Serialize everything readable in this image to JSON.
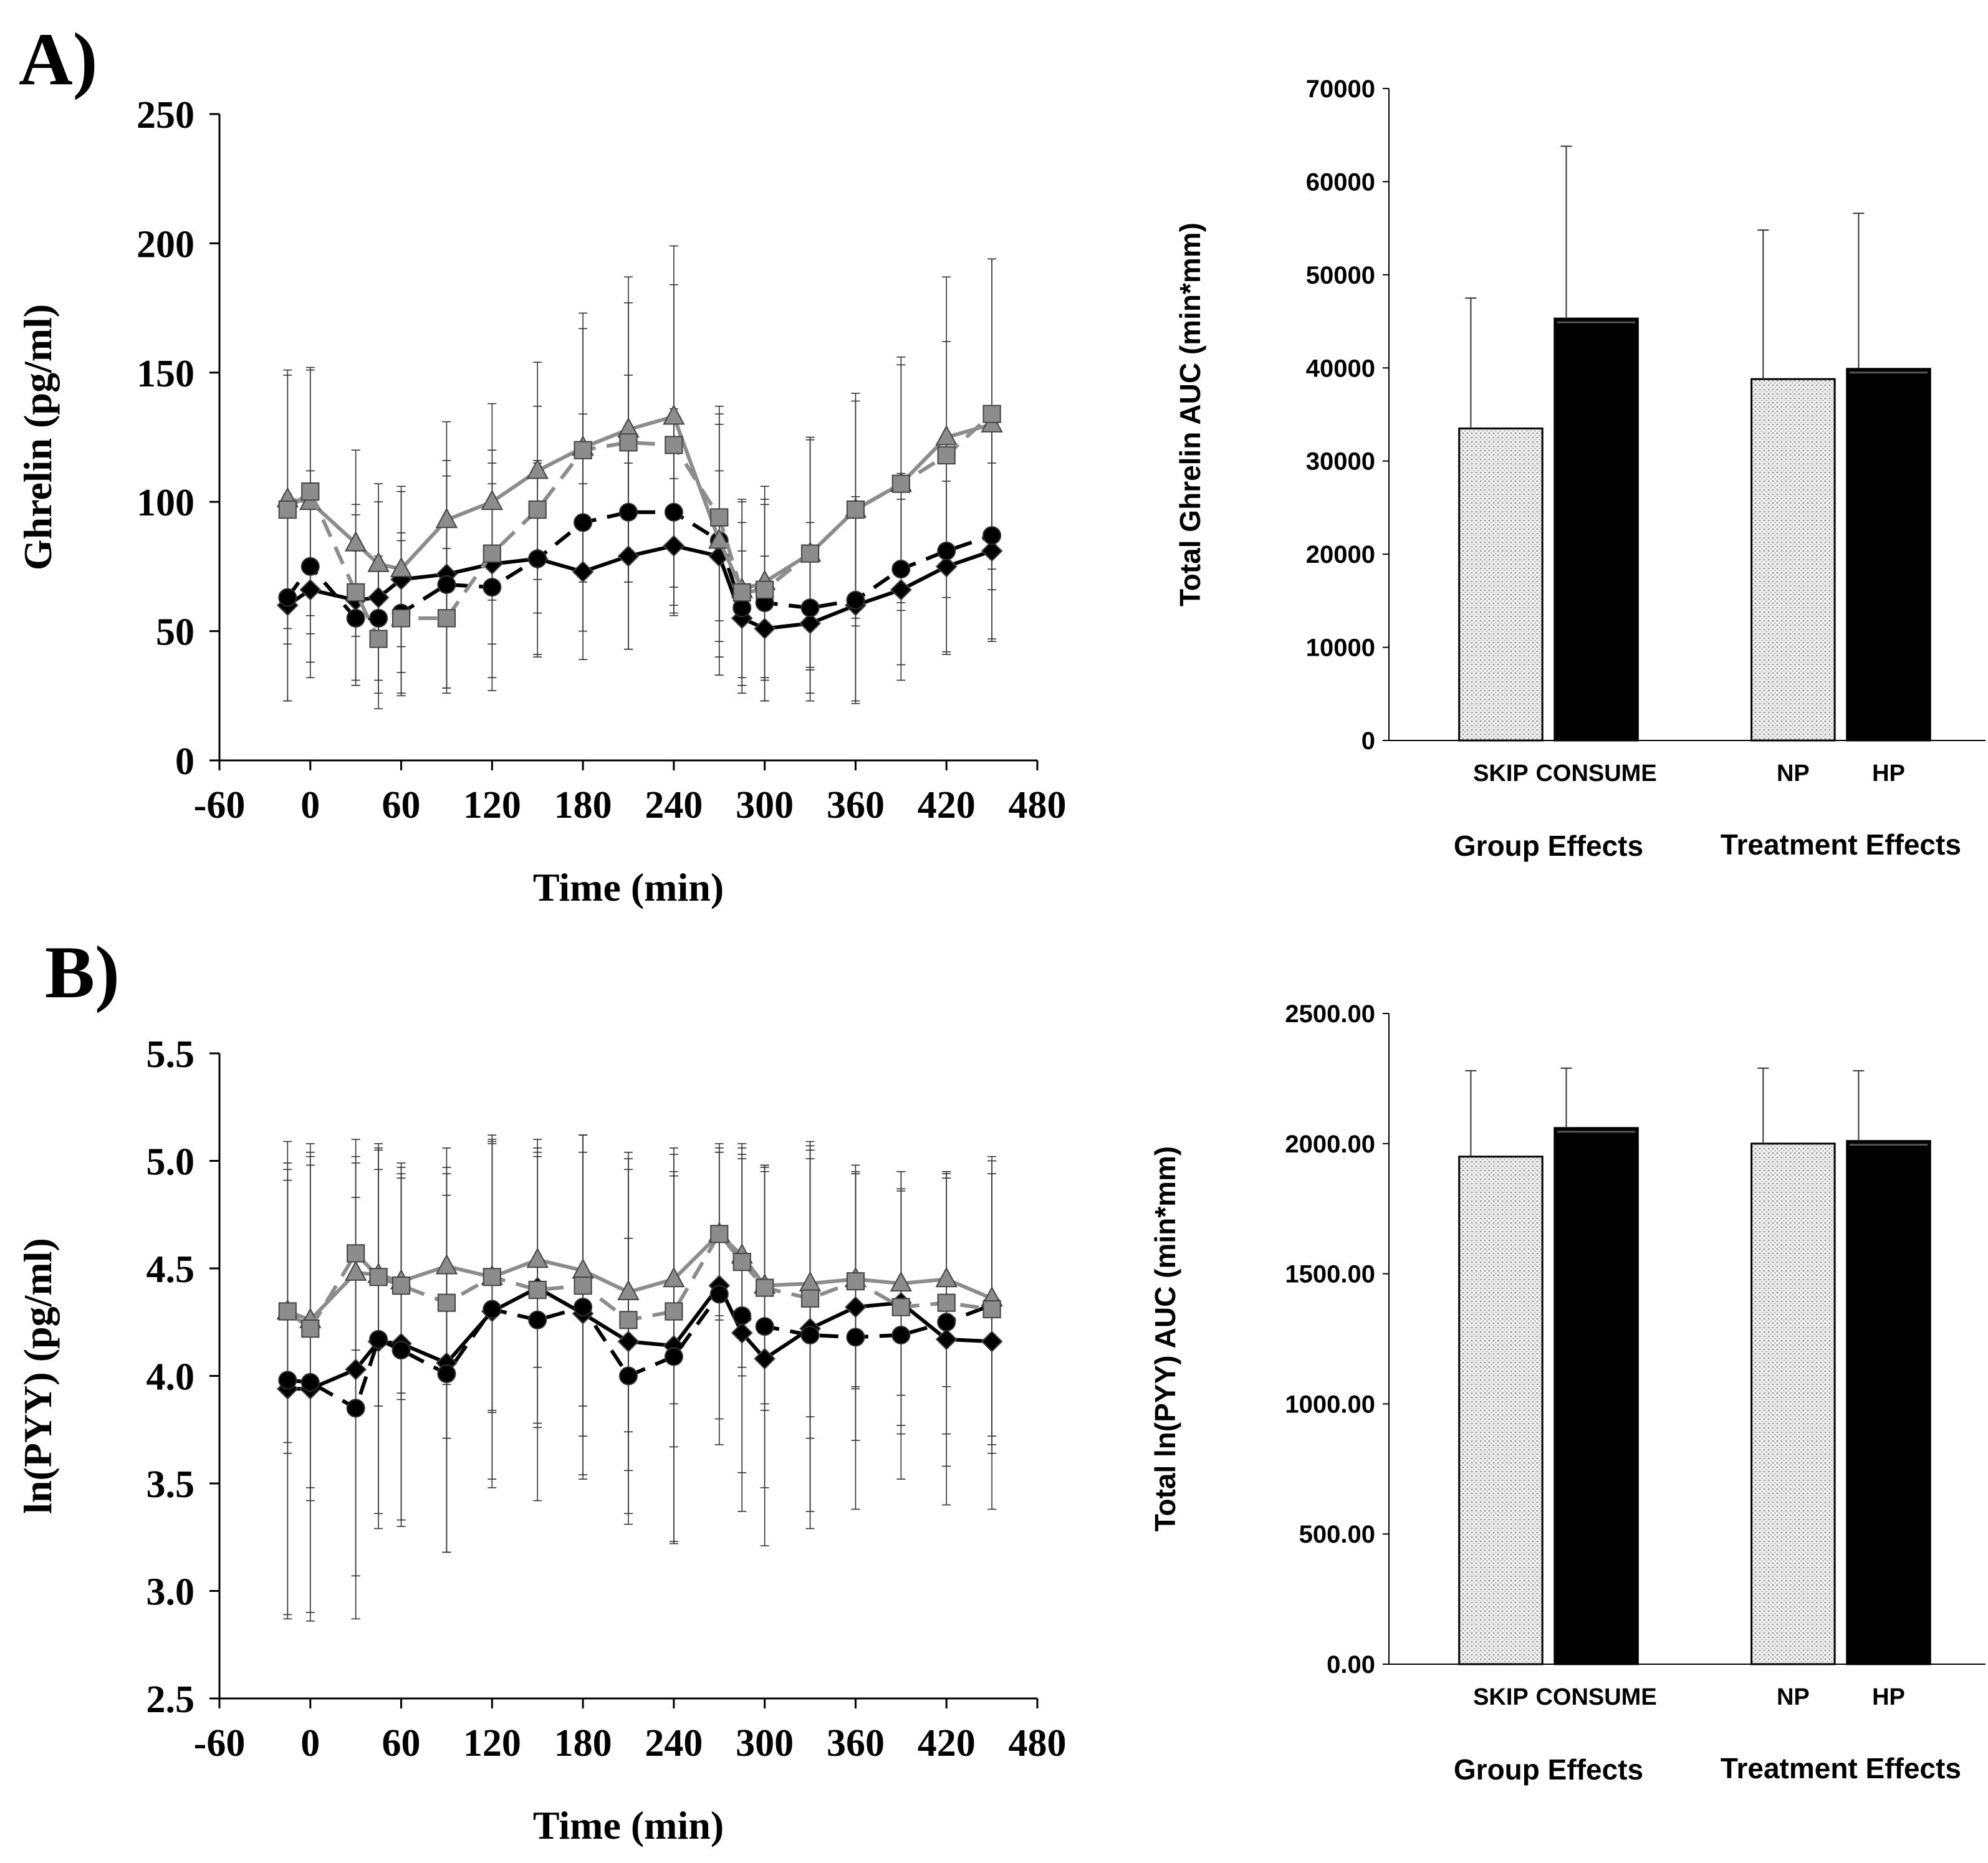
{
  "colors": {
    "black": "#000000",
    "gray": "#8c8c8c",
    "errorbar": "#333333",
    "dotted_fill": "#e6e6e6"
  },
  "panels": {
    "a": {
      "label": "A)"
    },
    "b": {
      "label": "B)"
    }
  },
  "chart_data": [
    {
      "id": "a-line",
      "type": "line",
      "ylabel": "Ghrelin (pg/ml)",
      "xlabel": "Time (min)",
      "xlim": [
        -60,
        480
      ],
      "ylim": [
        0,
        250
      ],
      "xticks": [
        -60,
        0,
        60,
        120,
        180,
        240,
        300,
        360,
        420,
        480
      ],
      "xtick_labels": [
        "-60",
        "0",
        "60",
        "120",
        "180",
        "240",
        "300",
        "360",
        "420",
        "480"
      ],
      "yticks": [
        0,
        50,
        100,
        150,
        200,
        250
      ],
      "ytick_labels": [
        "0",
        "50",
        "100",
        "150",
        "200",
        "250"
      ],
      "series": [
        {
          "name": "black-diamond",
          "color": "#000000",
          "marker": "diamond",
          "dash": false,
          "x": [
            -15,
            0,
            30,
            45,
            60,
            90,
            120,
            150,
            180,
            210,
            240,
            270,
            285,
            300,
            330,
            360,
            390,
            420,
            450
          ],
          "values": [
            60,
            66,
            62,
            63,
            70,
            72,
            76,
            78,
            73,
            79,
            83,
            79,
            55,
            51,
            53,
            60,
            66,
            75,
            81
          ],
          "err": [
            37,
            34,
            33,
            37,
            36,
            44,
            44,
            37,
            34,
            36,
            26,
            33,
            26,
            28,
            30,
            37,
            35,
            33,
            34
          ]
        },
        {
          "name": "black-circle",
          "color": "#000000",
          "marker": "circle",
          "dash": true,
          "x": [
            -15,
            0,
            30,
            45,
            60,
            90,
            120,
            150,
            180,
            210,
            240,
            270,
            285,
            300,
            330,
            360,
            390,
            420,
            450
          ],
          "values": [
            63,
            75,
            55,
            55,
            57,
            68,
            67,
            78,
            92,
            96,
            96,
            85,
            59,
            61,
            59,
            62,
            74,
            81,
            87
          ],
          "err": [
            40,
            37,
            26,
            24,
            31,
            42,
            40,
            38,
            42,
            53,
            40,
            52,
            33,
            38,
            33,
            40,
            37,
            40,
            41
          ]
        },
        {
          "name": "gray-triangle",
          "color": "#8c8c8c",
          "marker": "triangle",
          "dash": false,
          "x": [
            -15,
            0,
            30,
            45,
            60,
            90,
            120,
            150,
            180,
            210,
            240,
            270,
            285,
            300,
            330,
            360,
            390,
            420,
            450
          ],
          "values": [
            101,
            100,
            84,
            76,
            74,
            93,
            100,
            112,
            121,
            128,
            133,
            85,
            66,
            69,
            80,
            97,
            107,
            125,
            130
          ],
          "err": [
            50,
            51,
            36,
            31,
            30,
            38,
            38,
            42,
            52,
            59,
            66,
            45,
            34,
            37,
            45,
            45,
            49,
            62,
            64
          ]
        },
        {
          "name": "gray-square",
          "color": "#8c8c8c",
          "marker": "square",
          "dash": true,
          "x": [
            -15,
            0,
            30,
            45,
            60,
            90,
            120,
            150,
            180,
            210,
            240,
            270,
            285,
            300,
            330,
            360,
            390,
            420,
            450
          ],
          "values": [
            97,
            104,
            65,
            47,
            55,
            55,
            80,
            97,
            120,
            123,
            122,
            94,
            65,
            66,
            80,
            97,
            107,
            118,
            134
          ],
          "err": [
            52,
            48,
            34,
            27,
            30,
            27,
            35,
            40,
            47,
            54,
            62,
            40,
            36,
            35,
            44,
            42,
            46,
            44,
            60
          ]
        }
      ]
    },
    {
      "id": "a-bar",
      "type": "bar",
      "ylabel": "Total Ghrelin AUC (min*mm)",
      "ylim": [
        0,
        70000
      ],
      "yticks": [
        0,
        10000,
        20000,
        30000,
        40000,
        50000,
        60000,
        70000
      ],
      "ytick_labels": [
        "0",
        "10000",
        "20000",
        "30000",
        "40000",
        "50000",
        "60000",
        "70000"
      ],
      "categories": [
        "SKIP",
        "CONSUME",
        "NP",
        "HP"
      ],
      "fills": [
        "dotted",
        "black",
        "dotted",
        "black"
      ],
      "values": [
        33500,
        45300,
        38800,
        39900
      ],
      "err": [
        14000,
        18500,
        16000,
        16700
      ],
      "groups": [
        "Group Effects",
        "Treatment Effects"
      ]
    },
    {
      "id": "b-line",
      "type": "line",
      "ylabel": "ln(PYY) (pg/ml)",
      "xlabel": "Time (min)",
      "xlim": [
        -60,
        480
      ],
      "ylim": [
        2.5,
        5.5
      ],
      "xticks": [
        -60,
        0,
        60,
        120,
        180,
        240,
        300,
        360,
        420,
        480
      ],
      "xtick_labels": [
        "-60",
        "0",
        "60",
        "120",
        "180",
        "240",
        "300",
        "360",
        "420",
        "480"
      ],
      "yticks": [
        2.5,
        3.0,
        3.5,
        4.0,
        4.5,
        5.0,
        5.5
      ],
      "ytick_labels": [
        "2.5",
        "3.0",
        "3.5",
        "4.0",
        "4.5",
        "5.0",
        "5.5"
      ],
      "series": [
        {
          "name": "black-diamond",
          "color": "#000000",
          "marker": "diamond",
          "dash": false,
          "x": [
            -15,
            0,
            30,
            45,
            60,
            90,
            120,
            150,
            180,
            210,
            240,
            270,
            285,
            300,
            330,
            360,
            390,
            420,
            450
          ],
          "values": [
            3.94,
            3.94,
            4.03,
            4.16,
            4.15,
            4.06,
            4.3,
            4.41,
            4.29,
            4.16,
            4.14,
            4.42,
            4.2,
            4.08,
            4.22,
            4.32,
            4.34,
            4.17,
            4.16
          ],
          "err": [
            1.05,
            1.04,
            0.96,
            0.8,
            0.82,
            0.88,
            0.82,
            0.65,
            0.75,
            0.85,
            0.92,
            0.62,
            0.83,
            0.87,
            0.85,
            0.62,
            0.61,
            0.77,
            0.78
          ]
        },
        {
          "name": "black-circle",
          "color": "#000000",
          "marker": "circle",
          "dash": true,
          "x": [
            -15,
            0,
            30,
            45,
            60,
            90,
            120,
            150,
            180,
            210,
            240,
            270,
            285,
            300,
            330,
            360,
            390,
            420,
            450
          ],
          "values": [
            3.98,
            3.97,
            3.85,
            4.17,
            4.12,
            4.01,
            4.31,
            4.26,
            4.32,
            4.0,
            4.09,
            4.38,
            4.28,
            4.23,
            4.19,
            4.18,
            4.19,
            4.25,
            4.33
          ],
          "err": [
            1.11,
            1.11,
            0.98,
            0.88,
            0.82,
            0.83,
            0.79,
            0.84,
            0.8,
            0.64,
            0.86,
            0.7,
            0.73,
            0.75,
            0.9,
            0.8,
            0.67,
            0.67,
            0.69
          ]
        },
        {
          "name": "gray-triangle",
          "color": "#8c8c8c",
          "marker": "triangle",
          "dash": false,
          "x": [
            -15,
            0,
            30,
            45,
            60,
            90,
            120,
            150,
            180,
            210,
            240,
            270,
            285,
            300,
            330,
            360,
            390,
            420,
            450
          ],
          "values": [
            4.3,
            4.26,
            4.48,
            4.47,
            4.44,
            4.51,
            4.46,
            4.54,
            4.49,
            4.39,
            4.45,
            4.66,
            4.56,
            4.42,
            4.43,
            4.45,
            4.43,
            4.45,
            4.36
          ],
          "err": [
            0.66,
            0.78,
            0.62,
            0.61,
            0.55,
            0.55,
            0.62,
            0.5,
            0.63,
            0.65,
            0.58,
            0.4,
            0.52,
            0.55,
            0.62,
            0.5,
            0.52,
            0.5,
            0.64
          ]
        },
        {
          "name": "gray-square",
          "color": "#8c8c8c",
          "marker": "square",
          "dash": true,
          "x": [
            -15,
            0,
            30,
            45,
            60,
            90,
            120,
            150,
            180,
            210,
            240,
            270,
            285,
            300,
            330,
            360,
            390,
            420,
            450
          ],
          "values": [
            4.3,
            4.22,
            4.57,
            4.46,
            4.42,
            4.34,
            4.46,
            4.4,
            4.42,
            4.26,
            4.3,
            4.66,
            4.53,
            4.41,
            4.36,
            4.44,
            4.32,
            4.34,
            4.31
          ],
          "err": [
            0.61,
            0.8,
            0.45,
            0.6,
            0.5,
            0.63,
            0.63,
            0.62,
            0.7,
            0.7,
            0.63,
            0.38,
            0.53,
            0.57,
            0.65,
            0.5,
            0.55,
            0.61,
            0.63
          ]
        }
      ]
    },
    {
      "id": "b-bar",
      "type": "bar",
      "ylabel": "Total ln(PYY) AUC (min*mm)",
      "ylim": [
        0,
        2500
      ],
      "yticks": [
        0,
        500,
        1000,
        1500,
        2000,
        2500
      ],
      "ytick_labels": [
        "0.00",
        "500.00",
        "1000.00",
        "1500.00",
        "2000.00",
        "2500.00"
      ],
      "categories": [
        "SKIP",
        "CONSUME",
        "NP",
        "HP"
      ],
      "fills": [
        "dotted",
        "black",
        "dotted",
        "black"
      ],
      "values": [
        1950,
        2060,
        2000,
        2010
      ],
      "err": [
        330,
        230,
        290,
        270
      ],
      "groups": [
        "Group Effects",
        "Treatment Effects"
      ]
    }
  ]
}
